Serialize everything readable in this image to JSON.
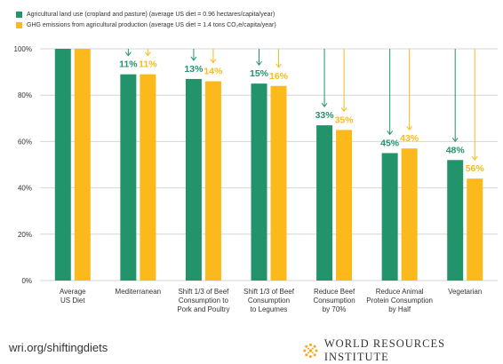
{
  "colors": {
    "green": "#23936b",
    "yellow": "#fbb91b",
    "grid": "#d6d6d6",
    "axis_text": "#333333",
    "wri_logo": "#f5a623"
  },
  "legend": [
    {
      "label": "Agricultural land use (cropland and pasture) (average US diet = 0.96 hectares/capita/year)",
      "color": "#23936b"
    },
    {
      "label": "GHG emissions from agricultural production (average US diet = 1.4 tons CO₂e/capita/year)",
      "color": "#fbb91b"
    }
  ],
  "footer": {
    "url": "wri.org/shiftingdiets",
    "brand": "WORLD RESOURCES INSTITUTE"
  },
  "chart_data": {
    "type": "bar",
    "title": "",
    "xlabel": "",
    "ylabel": "",
    "ylim": [
      0,
      100
    ],
    "yticks": [
      "0%",
      "20%",
      "40%",
      "60%",
      "80%",
      "100%"
    ],
    "grid": true,
    "legend_position": "top-left",
    "categories": [
      [
        "Average",
        "US Diet"
      ],
      [
        "Mediterranean"
      ],
      [
        "Shift 1/3 of Beef",
        "Consumption to",
        "Pork and Poultry"
      ],
      [
        "Shift 1/3 of Beef",
        "Consumption",
        "to Legumes"
      ],
      [
        "Reduce Beef",
        "Consumption",
        "by 70%"
      ],
      [
        "Reduce Animal",
        "Protein Consumption",
        "by Half"
      ],
      [
        "Vegetarian"
      ]
    ],
    "series": [
      {
        "name": "Agricultural land use (cropland and pasture) (average US diet = 0.96 hectares/capita/year)",
        "color": "#23936b",
        "values": [
          100,
          89,
          87,
          85,
          67,
          55,
          52
        ],
        "labels": [
          "",
          "11%",
          "13%",
          "15%",
          "33%",
          "45%",
          "48%"
        ]
      },
      {
        "name": "GHG emissions from agricultural production (average US diet = 1.4 tons CO₂e/capita/year)",
        "color": "#fbb91b",
        "values": [
          100,
          89,
          86,
          84,
          65,
          57,
          44
        ],
        "labels": [
          "",
          "11%",
          "14%",
          "16%",
          "35%",
          "43%",
          "56%"
        ]
      }
    ]
  }
}
